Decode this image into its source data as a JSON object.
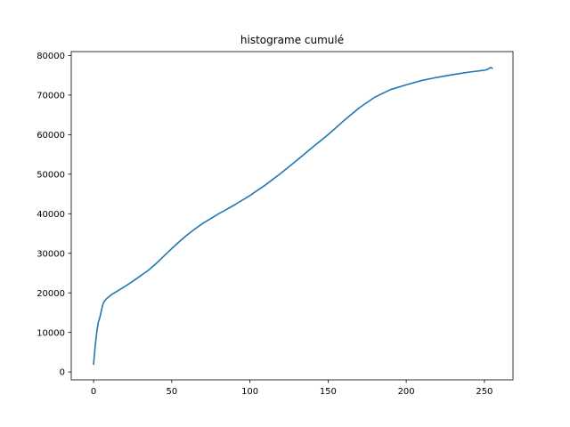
{
  "chart_data": {
    "type": "line",
    "title": "histograme cumulé",
    "xlabel": "",
    "ylabel": "",
    "xlim": [
      -14.3,
      268.3
    ],
    "ylim": [
      -2000,
      81000
    ],
    "xticks": [
      0,
      50,
      100,
      150,
      200,
      250
    ],
    "yticks": [
      0,
      10000,
      20000,
      30000,
      40000,
      50000,
      60000,
      70000,
      80000
    ],
    "grid": false,
    "series": [
      {
        "color": "#1f77b4",
        "x": [
          0,
          1,
          2,
          3,
          4,
          5,
          6,
          7,
          8,
          10,
          12,
          15,
          20,
          25,
          30,
          35,
          40,
          45,
          50,
          55,
          60,
          65,
          70,
          80,
          90,
          100,
          110,
          120,
          130,
          140,
          150,
          160,
          170,
          180,
          190,
          200,
          210,
          220,
          230,
          240,
          250,
          252,
          254,
          255
        ],
        "y": [
          2000,
          6500,
          10000,
          12500,
          13800,
          15500,
          17200,
          17900,
          18400,
          19100,
          19700,
          20400,
          21600,
          22900,
          24300,
          25700,
          27400,
          29300,
          31200,
          33000,
          34700,
          36200,
          37600,
          40000,
          42200,
          44600,
          47300,
          50300,
          53500,
          56800,
          60000,
          63500,
          66800,
          69500,
          71400,
          72600,
          73700,
          74500,
          75200,
          75800,
          76300,
          76500,
          77000,
          76800
        ]
      }
    ]
  }
}
